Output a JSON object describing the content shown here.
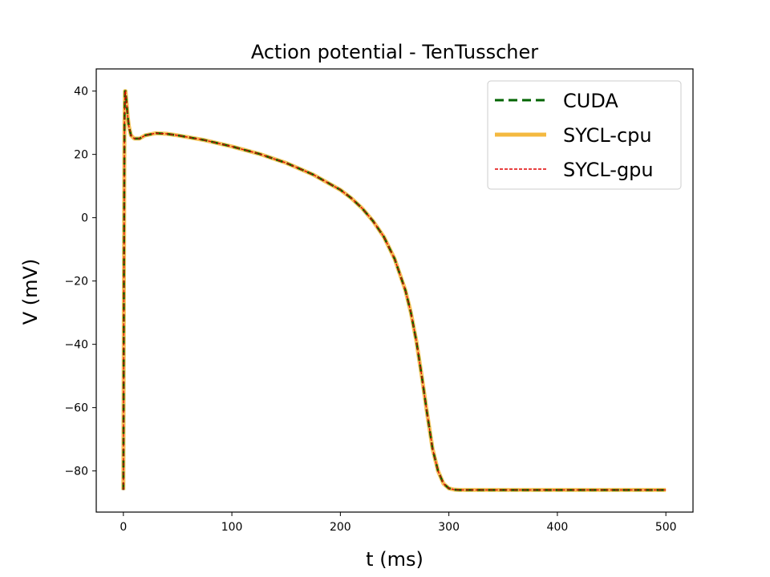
{
  "chart_data": {
    "type": "line",
    "title": "Action potential - TenTusscher",
    "xlabel": "t (ms)",
    "ylabel": "V (mV)",
    "xlim": [
      -25,
      525
    ],
    "ylim": [
      -93,
      47
    ],
    "xticks": [
      0,
      100,
      200,
      300,
      400,
      500
    ],
    "yticks": [
      -80,
      -60,
      -40,
      -20,
      0,
      20,
      40
    ],
    "grid": false,
    "legend_position": "upper right",
    "x": [
      0,
      0.5,
      1,
      1.5,
      2,
      3,
      4,
      5,
      7,
      10,
      15,
      20,
      30,
      40,
      50,
      75,
      100,
      125,
      150,
      175,
      200,
      210,
      220,
      230,
      240,
      250,
      260,
      265,
      270,
      275,
      280,
      285,
      290,
      295,
      300,
      305,
      310,
      320,
      350,
      400,
      450,
      500
    ],
    "series": [
      {
        "name": "CUDA",
        "color": "#006400",
        "style": "dashed",
        "values": [
          -86,
          -20,
          30,
          40,
          40,
          36,
          32,
          29,
          26,
          25,
          25,
          26,
          26.7,
          26.5,
          26,
          24.5,
          22.5,
          20.2,
          17.3,
          13.6,
          8.8,
          6.2,
          3,
          -1,
          -6,
          -13,
          -23,
          -30,
          -39,
          -50,
          -62,
          -73,
          -80,
          -84,
          -85.5,
          -85.9,
          -86,
          -86,
          -86,
          -86,
          -86,
          -86
        ]
      },
      {
        "name": "SYCL-cpu",
        "color": "#f4b940",
        "style": "solid",
        "values": [
          -86,
          -20,
          30,
          40,
          40,
          36,
          32,
          29,
          26,
          25,
          25,
          26,
          26.7,
          26.5,
          26,
          24.5,
          22.5,
          20.2,
          17.3,
          13.6,
          8.8,
          6.2,
          3,
          -1,
          -6,
          -13,
          -23,
          -30,
          -39,
          -50,
          -62,
          -73,
          -80,
          -84,
          -85.5,
          -85.9,
          -86,
          -86,
          -86,
          -86,
          -86,
          -86
        ]
      },
      {
        "name": "SYCL-gpu",
        "color": "#e00000",
        "style": "dashed",
        "values": [
          -86,
          -20,
          30,
          40,
          40,
          36,
          32,
          29,
          26,
          25,
          25,
          26,
          26.7,
          26.5,
          26,
          24.5,
          22.5,
          20.2,
          17.3,
          13.6,
          8.8,
          6.2,
          3,
          -1,
          -6,
          -13,
          -23,
          -30,
          -39,
          -50,
          -62,
          -73,
          -80,
          -84,
          -85.5,
          -85.9,
          -86,
          -86,
          -86,
          -86,
          -86,
          -86
        ]
      }
    ]
  }
}
